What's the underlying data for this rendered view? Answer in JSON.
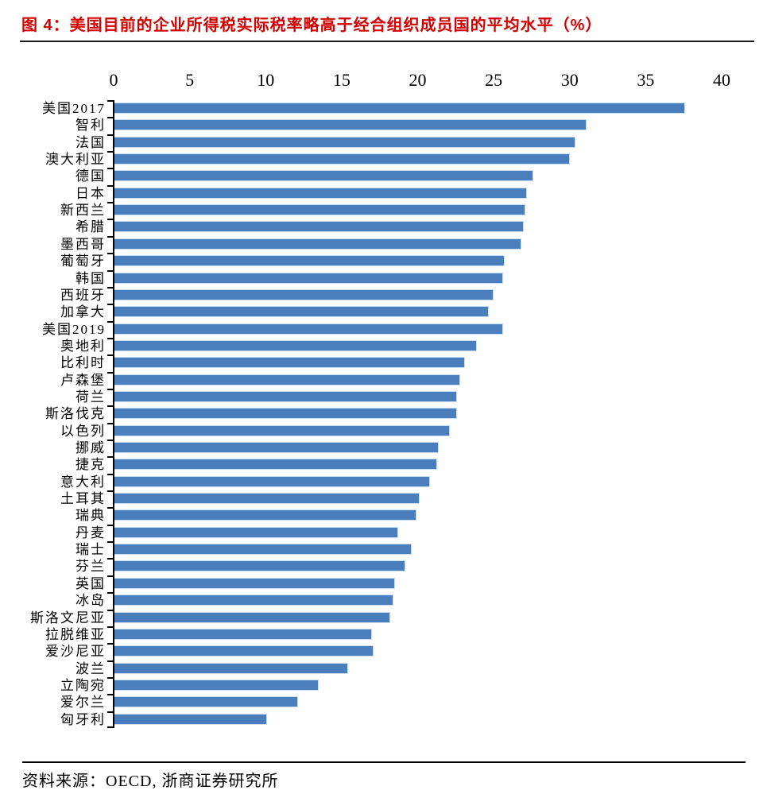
{
  "page": {
    "title": "图 4：美国目前的企业所得税实际税率略高于经合组织成员国的平均水平（%）",
    "source": "资料来源：OECD, 浙商证券研究所",
    "title_color": "#d40000",
    "rule_color": "#1b1b1b"
  },
  "chart_data": {
    "type": "bar",
    "orientation": "horizontal",
    "title": "美国目前的企业所得税实际税率略高于经合组织成员国的平均水平（%）",
    "xlabel": "",
    "ylabel": "",
    "xlim": [
      0,
      40
    ],
    "x_ticks": [
      "0",
      "5",
      "10",
      "15",
      "20",
      "25",
      "30",
      "35",
      "40"
    ],
    "grid": false,
    "legend": "none",
    "bar_color": "#4a7ebc",
    "categories": [
      "美国2017",
      "智利",
      "法国",
      "澳大利亚",
      "德国",
      "日本",
      "新西兰",
      "希腊",
      "墨西哥",
      "葡萄牙",
      "韩国",
      "西班牙",
      "加拿大",
      "美国2019",
      "奥地利",
      "比利时",
      "卢森堡",
      "荷兰",
      "斯洛伐克",
      "以色列",
      "挪威",
      "捷克",
      "意大利",
      "土耳其",
      "瑞典",
      "丹麦",
      "瑞士",
      "芬兰",
      "英国",
      "冰岛",
      "斯洛文尼亚",
      "拉脱维亚",
      "爱沙尼亚",
      "波兰",
      "立陶宛",
      "爱尔兰",
      "匈牙利"
    ],
    "values": [
      37.5,
      31.0,
      30.3,
      29.9,
      27.5,
      27.1,
      27.0,
      26.9,
      26.7,
      25.6,
      25.5,
      24.9,
      24.6,
      25.5,
      23.8,
      23.0,
      22.7,
      22.5,
      22.5,
      22.0,
      21.3,
      21.2,
      20.7,
      20.0,
      19.8,
      18.6,
      19.5,
      19.1,
      18.4,
      18.3,
      18.1,
      16.9,
      17.0,
      15.3,
      13.4,
      12.0,
      10.0
    ]
  }
}
